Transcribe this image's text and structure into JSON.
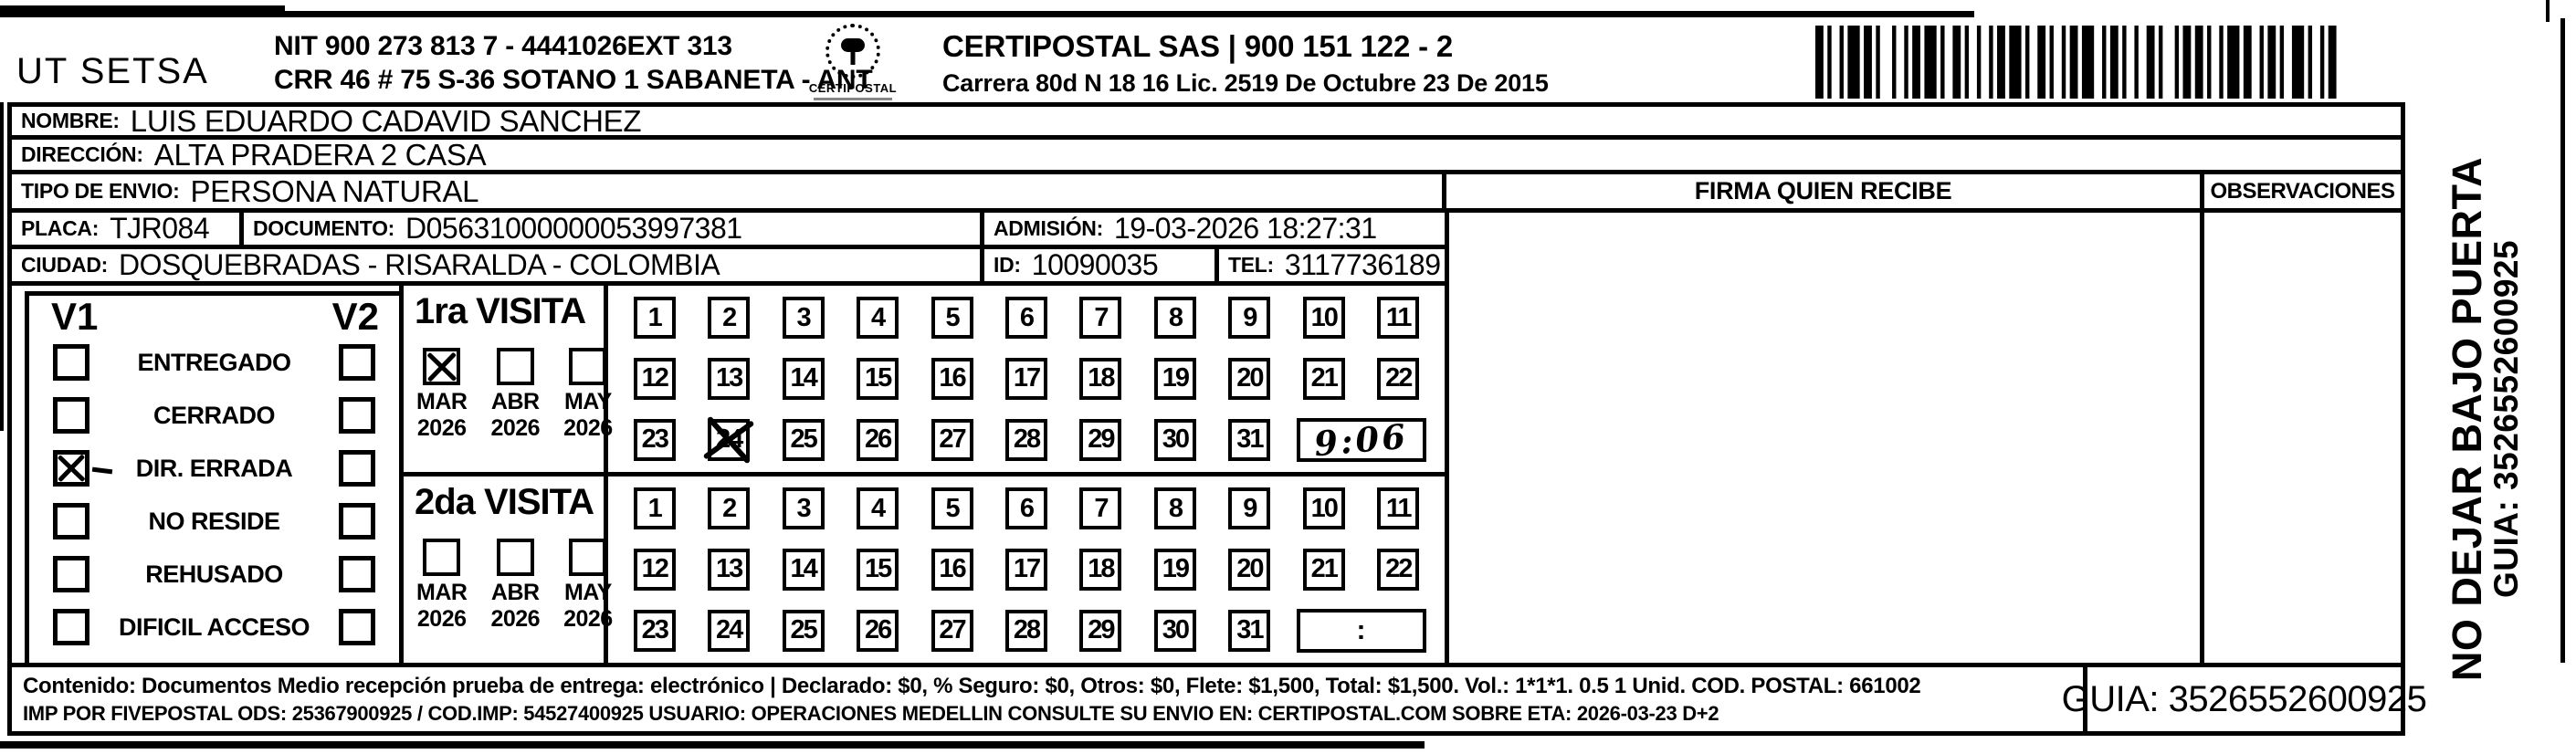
{
  "colors": {
    "ink": "#000000",
    "paper": "#ffffff"
  },
  "header": {
    "company": "UT SETSA",
    "sender_line1": "NIT 900 273 813 7 - 4441026EXT 313",
    "sender_line2": "CRR 46 # 75 S-36 SOTANO 1 SABANETA - ANT",
    "logo_text": "CERTIPOSTAL",
    "provider_line1": "CERTIPOSTAL SAS | 900 151 122 - 2",
    "provider_line2": "Carrera 80d N 18 16  Lic. 2519 De Octubre 23 De 2015"
  },
  "shipment": {
    "nombre": {
      "label": "NOMBRE:",
      "value": "LUIS EDUARDO CADAVID SANCHEZ"
    },
    "direccion": {
      "label": "DIRECCIÓN:",
      "value": "ALTA PRADERA 2 CASA"
    },
    "tipo_envio": {
      "label": "TIPO DE ENVIO:",
      "value": "PERSONA NATURAL"
    },
    "placa": {
      "label": "PLACA:",
      "value": "TJR084"
    },
    "documento": {
      "label": "DOCUMENTO:",
      "value": "D05631000000053997381"
    },
    "admision": {
      "label": "ADMISIÓN:",
      "value": "19-03-2026 18:27:31"
    },
    "ciudad": {
      "label": "CIUDAD:",
      "value": "DOSQUEBRADAS - RISARALDA - COLOMBIA"
    },
    "id": {
      "label": "ID:",
      "value": "10090035"
    },
    "tel": {
      "label": "TEL:",
      "value": "3117736189"
    }
  },
  "status_panel": {
    "visit1_header": "V1",
    "visit2_header": "V2",
    "rows": [
      {
        "label": "ENTREGADO",
        "v1_checked": false,
        "v2_checked": false,
        "hand_dash": false
      },
      {
        "label": "CERRADO",
        "v1_checked": false,
        "v2_checked": false,
        "hand_dash": false
      },
      {
        "label": "DIR. ERRADA",
        "v1_checked": true,
        "v2_checked": false,
        "hand_dash": true
      },
      {
        "label": "NO RESIDE",
        "v1_checked": false,
        "v2_checked": false,
        "hand_dash": false
      },
      {
        "label": "REHUSADO",
        "v1_checked": false,
        "v2_checked": false,
        "hand_dash": false
      },
      {
        "label": "DIFICIL ACCESO",
        "v1_checked": false,
        "v2_checked": false,
        "hand_dash": false
      }
    ]
  },
  "visits": [
    {
      "title": "1ra VISITA",
      "months": [
        {
          "month": "MAR",
          "year": "2026",
          "checked": true
        },
        {
          "month": "ABR",
          "year": "2026",
          "checked": false
        },
        {
          "month": "MAY",
          "year": "2026",
          "checked": false
        }
      ],
      "day_rows": [
        [
          "1",
          "2",
          "3",
          "4",
          "5",
          "6",
          "7",
          "8",
          "9",
          "10",
          "11"
        ],
        [
          "12",
          "13",
          "14",
          "15",
          "16",
          "17",
          "18",
          "19",
          "20",
          "21",
          "22"
        ],
        [
          "23",
          "24",
          "25",
          "26",
          "27",
          "28",
          "29",
          "30",
          "31"
        ]
      ],
      "crossed_days": [
        24
      ],
      "time_value": "9:06",
      "time_handwritten": true
    },
    {
      "title": "2da VISITA",
      "months": [
        {
          "month": "MAR",
          "year": "2026",
          "checked": false
        },
        {
          "month": "ABR",
          "year": "2026",
          "checked": false
        },
        {
          "month": "MAY",
          "year": "2026",
          "checked": false
        }
      ],
      "day_rows": [
        [
          "1",
          "2",
          "3",
          "4",
          "5",
          "6",
          "7",
          "8",
          "9",
          "10",
          "11"
        ],
        [
          "12",
          "13",
          "14",
          "15",
          "16",
          "17",
          "18",
          "19",
          "20",
          "21",
          "22"
        ],
        [
          "23",
          "24",
          "25",
          "26",
          "27",
          "28",
          "29",
          "30",
          "31"
        ]
      ],
      "crossed_days": [],
      "time_value": ":",
      "time_handwritten": false
    }
  ],
  "delivery": {
    "firma_header": "FIRMA QUIEN RECIBE",
    "observaciones_header": "OBSERVACIONES"
  },
  "side_strip": {
    "line1": "NO DEJAR BAJO PUERTA",
    "line2": "GUIA: 3526552600925"
  },
  "footer": {
    "line1": "Contenido: Documentos Medio recepción prueba de entrega: electrónico | Declarado: $0, % Seguro: $0, Otros: $0, Flete: $1,500, Total: $1,500. Vol.: 1*1*1. 0.5  1 Unid. COD. POSTAL: 661002",
    "line2": "IMP POR FIVEPOSTAL ODS: 25367900925 / COD.IMP: 54527400925 USUARIO: OPERACIONES MEDELLIN CONSULTE SU ENVIO EN: CERTIPOSTAL.COM SOBRE ETA: 2026-03-23 D+2",
    "guia": "GUIA: 3526552600925"
  }
}
